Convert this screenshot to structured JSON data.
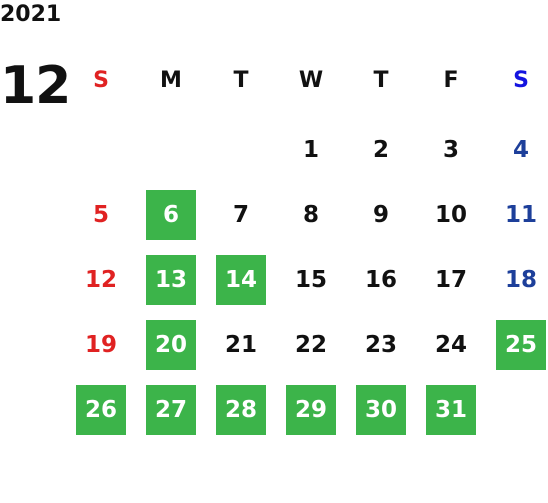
{
  "year": "2021",
  "month": "12",
  "weekdays": [
    "S",
    "M",
    "T",
    "W",
    "T",
    "F",
    "S"
  ],
  "weeks": [
    [
      null,
      null,
      null,
      {
        "day": 1
      },
      {
        "day": 2
      },
      {
        "day": 3
      },
      {
        "day": 4
      }
    ],
    [
      {
        "day": 5
      },
      {
        "day": 6,
        "highlight": true
      },
      {
        "day": 7
      },
      {
        "day": 8
      },
      {
        "day": 9
      },
      {
        "day": 10
      },
      {
        "day": 11
      }
    ],
    [
      {
        "day": 12
      },
      {
        "day": 13,
        "highlight": true
      },
      {
        "day": 14,
        "highlight": true
      },
      {
        "day": 15
      },
      {
        "day": 16
      },
      {
        "day": 17
      },
      {
        "day": 18
      }
    ],
    [
      {
        "day": 19
      },
      {
        "day": 20,
        "highlight": true
      },
      {
        "day": 21
      },
      {
        "day": 22
      },
      {
        "day": 23
      },
      {
        "day": 24
      },
      {
        "day": 25,
        "highlight": true
      }
    ],
    [
      {
        "day": 26,
        "highlight": true
      },
      {
        "day": 27,
        "highlight": true
      },
      {
        "day": 28,
        "highlight": true
      },
      {
        "day": 29,
        "highlight": true
      },
      {
        "day": 30,
        "highlight": true
      },
      {
        "day": 31,
        "highlight": true
      },
      null
    ]
  ]
}
